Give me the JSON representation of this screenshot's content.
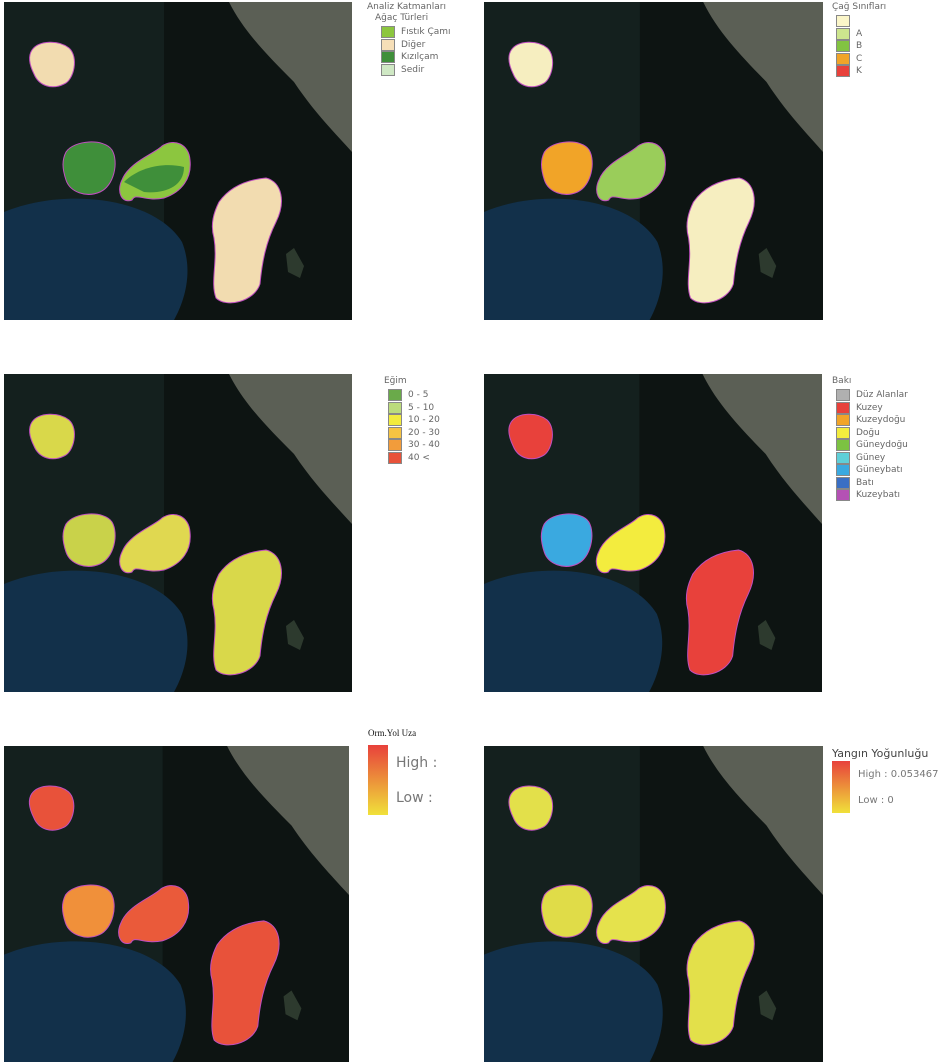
{
  "panels": [
    {
      "legend": {
        "title": "Analiz Katmanları",
        "subtitle": "Ağaç Türleri",
        "items": [
          {
            "label": "Fıstık Çamı",
            "color": "#8cc63f"
          },
          {
            "label": "Diğer",
            "color": "#f6dfb8"
          },
          {
            "label": "Kızılçam",
            "color": "#3f8f3a"
          },
          {
            "label": "Sedir",
            "color": "#cfe8c4"
          }
        ]
      }
    },
    {
      "legend": {
        "title": "Çağ Sınıfları",
        "items": [
          {
            "color": "#fbf6c9"
          },
          {
            "label": "A",
            "color": "#cde58e"
          },
          {
            "label": "B",
            "color": "#82c341"
          },
          {
            "label": "C",
            "color": "#f1a428"
          },
          {
            "label": "K",
            "color": "#e8413b"
          }
        ]
      }
    },
    {
      "legend": {
        "title": "Eğim",
        "items": [
          {
            "label": "0 - 5",
            "color": "#6aaa4a"
          },
          {
            "label": "5 - 10",
            "color": "#bcdc7c"
          },
          {
            "label": "10 - 20",
            "color": "#f3ec3e"
          },
          {
            "label": "20 - 30",
            "color": "#f6c443"
          },
          {
            "label": "30 - 40",
            "color": "#f29c3b"
          },
          {
            "label": "40 <",
            "color": "#e8523a"
          }
        ]
      }
    },
    {
      "legend": {
        "title": "Bakı",
        "items": [
          {
            "label": "Düz Alanlar",
            "color": "#b0b0b0"
          },
          {
            "label": "Kuzey",
            "color": "#e8413b"
          },
          {
            "label": "Kuzeydoğu",
            "color": "#f1a428"
          },
          {
            "label": "Doğu",
            "color": "#f3ec3e"
          },
          {
            "label": "Güneydoğu",
            "color": "#7cc242"
          },
          {
            "label": "Güney",
            "color": "#5fcfd8"
          },
          {
            "label": "Güneybatı",
            "color": "#3aa9e0"
          },
          {
            "label": "Batı",
            "color": "#3a6fc4"
          },
          {
            "label": "Kuzeybatı",
            "color": "#b451b4"
          }
        ]
      }
    },
    {
      "legend": {
        "title": "Orm.Yol Uza",
        "high": "High :",
        "low": "Low :",
        "colors": [
          "#e8413b",
          "#f0e13a"
        ]
      }
    },
    {
      "legend": {
        "title": "Yangın Yoğunluğu",
        "high": "High : 0.053467",
        "low": "Low : 0",
        "colors": [
          "#e8413b",
          "#f0e13a"
        ]
      }
    }
  ]
}
